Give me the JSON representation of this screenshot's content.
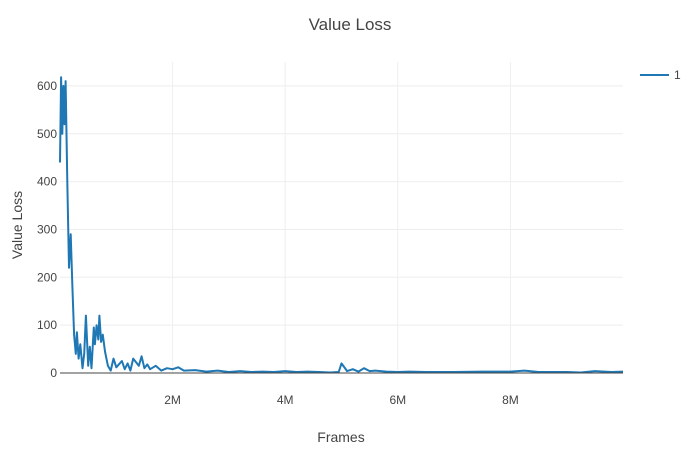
{
  "chart_data": {
    "type": "line",
    "title": "Value Loss",
    "xlabel": "Frames",
    "ylabel": "Value Loss",
    "xlim": [
      0,
      10000000
    ],
    "ylim": [
      0,
      650
    ],
    "x_ticks": [
      {
        "value": 2000000,
        "label": "2M"
      },
      {
        "value": 4000000,
        "label": "4M"
      },
      {
        "value": 6000000,
        "label": "6M"
      },
      {
        "value": 8000000,
        "label": "8M"
      }
    ],
    "y_ticks": [
      {
        "value": 0,
        "label": "0"
      },
      {
        "value": 100,
        "label": "100"
      },
      {
        "value": 200,
        "label": "200"
      },
      {
        "value": 300,
        "label": "300"
      },
      {
        "value": 400,
        "label": "400"
      },
      {
        "value": 500,
        "label": "500"
      },
      {
        "value": 600,
        "label": "600"
      }
    ],
    "grid": true,
    "legend_position": "top-right",
    "series": [
      {
        "name": "1",
        "color": "#1f77b4",
        "x": [
          0,
          20000,
          40000,
          60000,
          80000,
          100000,
          130000,
          160000,
          190000,
          220000,
          250000,
          280000,
          300000,
          330000,
          360000,
          400000,
          430000,
          460000,
          500000,
          530000,
          560000,
          600000,
          620000,
          650000,
          680000,
          700000,
          730000,
          760000,
          800000,
          850000,
          900000,
          950000,
          1000000,
          1100000,
          1150000,
          1200000,
          1250000,
          1300000,
          1400000,
          1450000,
          1500000,
          1550000,
          1600000,
          1700000,
          1800000,
          1900000,
          2000000,
          2100000,
          2200000,
          2400000,
          2600000,
          2800000,
          3000000,
          3200000,
          3400000,
          3600000,
          3800000,
          4000000,
          4200000,
          4400000,
          4600000,
          4800000,
          4950000,
          5000000,
          5100000,
          5200000,
          5300000,
          5400000,
          5500000,
          5600000,
          5800000,
          6000000,
          6200000,
          6500000,
          7000000,
          7500000,
          8000000,
          8250000,
          8500000,
          9000000,
          9250000,
          9500000,
          9800000,
          10000000
        ],
        "y": [
          440,
          618,
          500,
          600,
          520,
          610,
          400,
          220,
          290,
          180,
          80,
          40,
          85,
          30,
          60,
          10,
          40,
          120,
          15,
          55,
          10,
          95,
          60,
          100,
          70,
          120,
          65,
          80,
          45,
          15,
          5,
          30,
          12,
          25,
          8,
          20,
          5,
          30,
          15,
          35,
          10,
          18,
          8,
          15,
          5,
          10,
          8,
          12,
          5,
          6,
          3,
          5,
          2,
          4,
          2,
          3,
          2,
          4,
          2,
          3,
          2,
          1,
          2,
          20,
          4,
          8,
          3,
          10,
          4,
          5,
          3,
          2,
          3,
          2,
          2,
          3,
          3,
          5,
          2,
          2,
          1,
          4,
          2,
          3
        ]
      }
    ]
  }
}
